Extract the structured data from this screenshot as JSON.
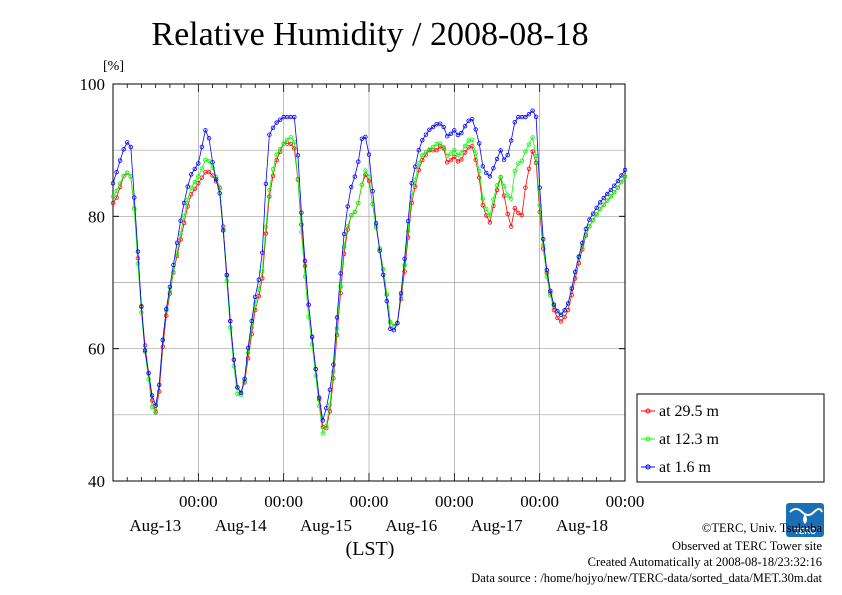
{
  "chart_data": {
    "type": "line",
    "title": "Relative Humidity / 2008-08-18",
    "yunit": "[%]",
    "xlabel": "(LST)",
    "ylim": [
      40,
      100
    ],
    "y_ticks": [
      "40",
      "60",
      "80",
      "100"
    ],
    "y_gridlines": [
      50,
      60,
      70,
      80,
      90
    ],
    "x_range_days": [
      0,
      6
    ],
    "x_day_ticks": [
      {
        "time": "00:00",
        "date": "Aug-13",
        "day": 1
      },
      {
        "time": "00:00",
        "date": "Aug-14",
        "day": 2
      },
      {
        "time": "00:00",
        "date": "Aug-15",
        "day": 3
      },
      {
        "time": "00:00",
        "date": "Aug-16",
        "day": 4
      },
      {
        "time": "00:00",
        "date": "Aug-17",
        "day": 5
      },
      {
        "time": "00:00",
        "date": "Aug-18",
        "day": 6
      }
    ],
    "grid": true,
    "legend_position": "outside-right-bottom",
    "series": [
      {
        "name": "at 29.5 m",
        "color": "#ff0000",
        "keypoints": [
          [
            0,
            82
          ],
          [
            0.05,
            83
          ],
          [
            0.12,
            86
          ],
          [
            0.2,
            87
          ],
          [
            0.26,
            80
          ],
          [
            0.3,
            72
          ],
          [
            0.36,
            62
          ],
          [
            0.42,
            56
          ],
          [
            0.47,
            51
          ],
          [
            0.52,
            50
          ],
          [
            0.6,
            63
          ],
          [
            0.7,
            71
          ],
          [
            0.8,
            77
          ],
          [
            0.9,
            83
          ],
          [
            1.0,
            85
          ],
          [
            1.1,
            87
          ],
          [
            1.18,
            86
          ],
          [
            1.26,
            84
          ],
          [
            1.34,
            70
          ],
          [
            1.4,
            60
          ],
          [
            1.46,
            54
          ],
          [
            1.52,
            53
          ],
          [
            1.6,
            60
          ],
          [
            1.68,
            67
          ],
          [
            1.74,
            69
          ],
          [
            1.82,
            82
          ],
          [
            1.9,
            88
          ],
          [
            2.0,
            91
          ],
          [
            2.08,
            91
          ],
          [
            2.14,
            90
          ],
          [
            2.2,
            80
          ],
          [
            2.28,
            68
          ],
          [
            2.34,
            61
          ],
          [
            2.4,
            54
          ],
          [
            2.46,
            48
          ],
          [
            2.52,
            48
          ],
          [
            2.58,
            55
          ],
          [
            2.65,
            66
          ],
          [
            2.72,
            76
          ],
          [
            2.78,
            80
          ],
          [
            2.86,
            81
          ],
          [
            2.92,
            85
          ],
          [
            2.98,
            87
          ],
          [
            3.04,
            82
          ],
          [
            3.1,
            77
          ],
          [
            3.18,
            71
          ],
          [
            3.26,
            63
          ],
          [
            3.34,
            64
          ],
          [
            3.42,
            72
          ],
          [
            3.5,
            82
          ],
          [
            3.6,
            88
          ],
          [
            3.7,
            90
          ],
          [
            3.8,
            90
          ],
          [
            3.86,
            91
          ],
          [
            3.92,
            88
          ],
          [
            4.0,
            89
          ],
          [
            4.06,
            88
          ],
          [
            4.14,
            90
          ],
          [
            4.2,
            91
          ],
          [
            4.28,
            87
          ],
          [
            4.34,
            81
          ],
          [
            4.42,
            79
          ],
          [
            4.48,
            83
          ],
          [
            4.54,
            86
          ],
          [
            4.6,
            82
          ],
          [
            4.66,
            78
          ],
          [
            4.72,
            82
          ],
          [
            4.78,
            79
          ],
          [
            4.84,
            85
          ],
          [
            4.92,
            90
          ],
          [
            4.96,
            88
          ],
          [
            5.02,
            77
          ],
          [
            5.1,
            70
          ],
          [
            5.18,
            65
          ],
          [
            5.26,
            64
          ],
          [
            5.34,
            66
          ],
          [
            5.44,
            72
          ],
          [
            5.56,
            78
          ],
          [
            5.7,
            81
          ],
          [
            5.9,
            84
          ],
          [
            6.0,
            86
          ]
        ]
      },
      {
        "name": "at 12.3 m",
        "color": "#00ff00",
        "keypoints": [
          [
            0,
            83
          ],
          [
            0.05,
            84
          ],
          [
            0.12,
            86
          ],
          [
            0.2,
            87
          ],
          [
            0.26,
            80
          ],
          [
            0.3,
            71
          ],
          [
            0.36,
            61
          ],
          [
            0.42,
            55
          ],
          [
            0.47,
            50
          ],
          [
            0.52,
            51
          ],
          [
            0.6,
            64
          ],
          [
            0.7,
            71
          ],
          [
            0.8,
            78
          ],
          [
            0.9,
            84
          ],
          [
            1.0,
            86
          ],
          [
            1.1,
            89
          ],
          [
            1.18,
            87
          ],
          [
            1.26,
            84
          ],
          [
            1.34,
            69
          ],
          [
            1.4,
            59
          ],
          [
            1.46,
            53
          ],
          [
            1.52,
            53
          ],
          [
            1.6,
            61
          ],
          [
            1.68,
            68
          ],
          [
            1.74,
            70
          ],
          [
            1.82,
            83
          ],
          [
            1.9,
            89
          ],
          [
            2.0,
            91
          ],
          [
            2.08,
            92
          ],
          [
            2.14,
            91
          ],
          [
            2.2,
            79
          ],
          [
            2.28,
            66
          ],
          [
            2.34,
            60
          ],
          [
            2.4,
            53
          ],
          [
            2.46,
            47
          ],
          [
            2.52,
            49
          ],
          [
            2.58,
            56
          ],
          [
            2.65,
            67
          ],
          [
            2.72,
            77
          ],
          [
            2.78,
            80
          ],
          [
            2.86,
            81
          ],
          [
            2.92,
            85
          ],
          [
            2.98,
            88
          ],
          [
            3.04,
            82
          ],
          [
            3.1,
            77
          ],
          [
            3.18,
            71
          ],
          [
            3.26,
            63
          ],
          [
            3.34,
            64
          ],
          [
            3.42,
            73
          ],
          [
            3.5,
            83
          ],
          [
            3.6,
            89
          ],
          [
            3.7,
            90
          ],
          [
            3.8,
            91
          ],
          [
            3.86,
            91
          ],
          [
            3.92,
            89
          ],
          [
            4.0,
            90
          ],
          [
            4.06,
            89
          ],
          [
            4.14,
            91
          ],
          [
            4.2,
            92
          ],
          [
            4.28,
            88
          ],
          [
            4.34,
            82
          ],
          [
            4.42,
            80
          ],
          [
            4.48,
            84
          ],
          [
            4.54,
            86
          ],
          [
            4.6,
            84
          ],
          [
            4.66,
            82
          ],
          [
            4.72,
            88
          ],
          [
            4.78,
            88
          ],
          [
            4.84,
            90
          ],
          [
            4.92,
            92
          ],
          [
            4.96,
            89
          ],
          [
            5.02,
            78
          ],
          [
            5.1,
            69
          ],
          [
            5.18,
            66
          ],
          [
            5.26,
            65
          ],
          [
            5.34,
            67
          ],
          [
            5.44,
            73
          ],
          [
            5.56,
            78
          ],
          [
            5.7,
            81
          ],
          [
            5.9,
            84
          ],
          [
            6.0,
            86
          ]
        ]
      },
      {
        "name": "at 1.6 m",
        "color": "#0000ff",
        "keypoints": [
          [
            0,
            85
          ],
          [
            0.05,
            87
          ],
          [
            0.12,
            90
          ],
          [
            0.2,
            92
          ],
          [
            0.26,
            81
          ],
          [
            0.3,
            73
          ],
          [
            0.36,
            61
          ],
          [
            0.42,
            56
          ],
          [
            0.47,
            52
          ],
          [
            0.52,
            51
          ],
          [
            0.6,
            64
          ],
          [
            0.7,
            72
          ],
          [
            0.8,
            80
          ],
          [
            0.9,
            86
          ],
          [
            1.0,
            88
          ],
          [
            1.1,
            94
          ],
          [
            1.18,
            87
          ],
          [
            1.26,
            83
          ],
          [
            1.34,
            70
          ],
          [
            1.4,
            60
          ],
          [
            1.46,
            54
          ],
          [
            1.52,
            53
          ],
          [
            1.6,
            62
          ],
          [
            1.68,
            69
          ],
          [
            1.74,
            72
          ],
          [
            1.82,
            92
          ],
          [
            1.9,
            94
          ],
          [
            2.0,
            95
          ],
          [
            2.08,
            95
          ],
          [
            2.14,
            95
          ],
          [
            2.2,
            82
          ],
          [
            2.28,
            68
          ],
          [
            2.34,
            61
          ],
          [
            2.4,
            54
          ],
          [
            2.46,
            49
          ],
          [
            2.52,
            52
          ],
          [
            2.58,
            57
          ],
          [
            2.65,
            69
          ],
          [
            2.72,
            79
          ],
          [
            2.78,
            84
          ],
          [
            2.86,
            87
          ],
          [
            2.92,
            92
          ],
          [
            2.98,
            92
          ],
          [
            3.04,
            84
          ],
          [
            3.1,
            77
          ],
          [
            3.18,
            70
          ],
          [
            3.26,
            62
          ],
          [
            3.34,
            64
          ],
          [
            3.42,
            74
          ],
          [
            3.5,
            85
          ],
          [
            3.6,
            91
          ],
          [
            3.7,
            93
          ],
          [
            3.8,
            94
          ],
          [
            3.86,
            94
          ],
          [
            3.92,
            92
          ],
          [
            4.0,
            93
          ],
          [
            4.06,
            92
          ],
          [
            4.14,
            94
          ],
          [
            4.2,
            95
          ],
          [
            4.28,
            92
          ],
          [
            4.34,
            87
          ],
          [
            4.42,
            86
          ],
          [
            4.48,
            88
          ],
          [
            4.54,
            90
          ],
          [
            4.6,
            88
          ],
          [
            4.66,
            91
          ],
          [
            4.72,
            95
          ],
          [
            4.78,
            95
          ],
          [
            4.84,
            95
          ],
          [
            4.92,
            96
          ],
          [
            4.96,
            95
          ],
          [
            5.02,
            79
          ],
          [
            5.1,
            70
          ],
          [
            5.18,
            66
          ],
          [
            5.26,
            65
          ],
          [
            5.34,
            67
          ],
          [
            5.44,
            73
          ],
          [
            5.56,
            79
          ],
          [
            5.7,
            82
          ],
          [
            5.9,
            85
          ],
          [
            6.0,
            87
          ]
        ]
      }
    ]
  },
  "credits": {
    "copyright": "©TERC, Univ. Tsukuba",
    "observed": "Observed at TERC Tower site",
    "created": "Created Automatically at 2008-08-18/23:32:16",
    "source": "Data source : /home/hojyo/new/TERC-data/sorted_data/MET.30m.dat",
    "logo_text": "TERC",
    "logo_color": "#1a6fb5"
  }
}
